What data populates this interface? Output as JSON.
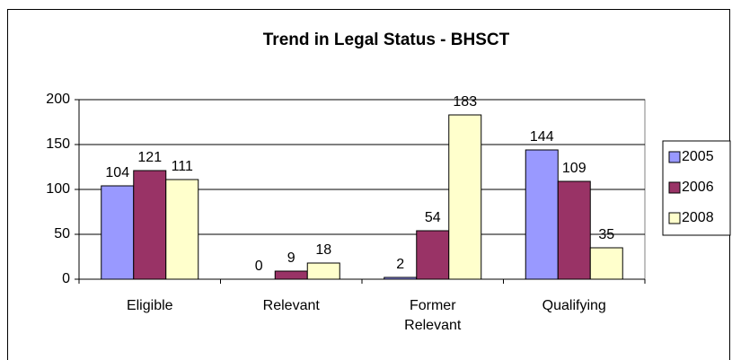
{
  "chart_data": {
    "type": "bar",
    "title": "Trend in Legal Status - BHSCT",
    "categories": [
      "Eligible",
      "Relevant",
      "Former Relevant",
      "Qualifying"
    ],
    "series": [
      {
        "name": "2005",
        "color": "#9999ff",
        "values": [
          104,
          0,
          2,
          144
        ]
      },
      {
        "name": "2006",
        "color": "#993366",
        "values": [
          121,
          9,
          54,
          109
        ]
      },
      {
        "name": "2008",
        "color": "#ffffcc",
        "values": [
          111,
          18,
          183,
          35
        ]
      }
    ],
    "ylim": [
      0,
      200
    ],
    "yticks": [
      0,
      50,
      100,
      150,
      200
    ],
    "grid": true,
    "legend": "right"
  }
}
